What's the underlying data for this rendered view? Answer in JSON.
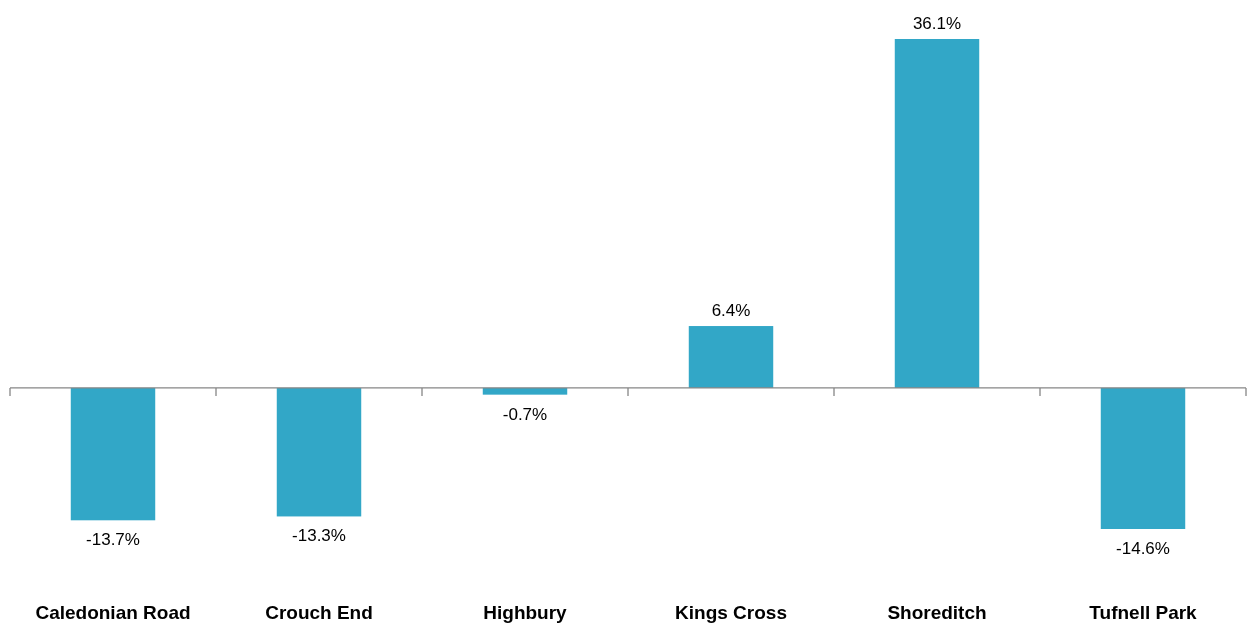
{
  "chart_data": {
    "type": "bar",
    "categories": [
      "Caledonian Road",
      "Crouch End",
      "Highbury",
      "Kings Cross",
      "Shoreditch",
      "Tufnell Park"
    ],
    "values": [
      -13.7,
      -13.3,
      -0.7,
      6.4,
      36.1,
      -14.6
    ],
    "value_labels": [
      "-13.7%",
      "-13.3%",
      "-0.7%",
      "6.4%",
      "36.1%",
      "-14.6%"
    ],
    "color": "#32a7c7"
  }
}
